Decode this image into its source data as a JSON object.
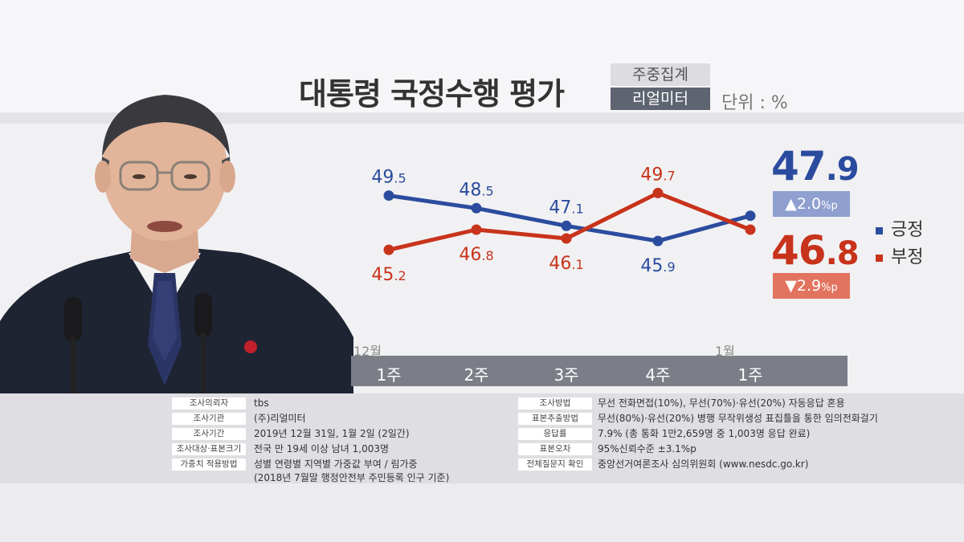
{
  "header": {
    "title": "대통령 국정수행 평가",
    "tag_top": "주중집계",
    "tag_bottom": "리얼미터",
    "unit": "단위 : %"
  },
  "chart_data": {
    "type": "line",
    "title": "대통령 국정수행 평가",
    "categories": [
      "1주",
      "2주",
      "3주",
      "4주",
      "1주"
    ],
    "months": [
      {
        "label": "12월",
        "index": 0
      },
      {
        "label": "1월",
        "index": 4
      }
    ],
    "series": [
      {
        "name": "긍정",
        "color": "#2b4c9e",
        "values": [
          49.5,
          48.5,
          47.1,
          45.9,
          47.9
        ]
      },
      {
        "name": "부정",
        "color": "#c8331b",
        "values": [
          45.2,
          46.8,
          46.1,
          49.7,
          46.8
        ]
      }
    ],
    "data_labels": {
      "positive": [
        {
          "int": "49",
          "dec": ".5"
        },
        {
          "int": "48",
          "dec": ".5"
        },
        {
          "int": "47",
          "dec": ".1"
        },
        {
          "int": "45",
          "dec": ".9"
        }
      ],
      "negative": [
        {
          "int": "45",
          "dec": ".2"
        },
        {
          "int": "46",
          "dec": ".8"
        },
        {
          "int": "46",
          "dec": ".1"
        },
        {
          "int": "49",
          "dec": ".7"
        }
      ]
    },
    "latest": {
      "positive": {
        "int": "47",
        "dec": ".9",
        "change_value": "▲2.0",
        "change_unit": "%p"
      },
      "negative": {
        "int": "46",
        "dec": ".8",
        "change_value": "▼2.9",
        "change_unit": "%p"
      }
    },
    "legend": [
      {
        "label": "긍정",
        "color": "#2b4c9e"
      },
      {
        "label": "부정",
        "color": "#c8331b"
      }
    ],
    "ylim": [
      44,
      51
    ]
  },
  "survey_info": {
    "left": [
      {
        "key": "조사의뢰자",
        "value": "tbs"
      },
      {
        "key": "조사기관",
        "value": "(주)리얼미터"
      },
      {
        "key": "조사기간",
        "value": "2019년 12월 31일, 1월 2일 (2일간)"
      },
      {
        "key": "조사대상·표본크기",
        "value": "전국 만 19세 이상 남녀 1,003명"
      },
      {
        "key": "가중치 적용방법",
        "value": "성별 연령별 지역별 가중값 부여 / 림가중",
        "value2": "(2018년 7월말 행정안전부 주민등록 인구 기준)"
      }
    ],
    "right": [
      {
        "key": "조사방법",
        "value": "무선 전화면접(10%), 무선(70%)·유선(20%) 자동응답 혼용"
      },
      {
        "key": "표본추출방법",
        "value": "무선(80%)·유선(20%) 병행 무작위생성 표집틀을 통한 임의전화걸기"
      },
      {
        "key": "응답률",
        "value": "7.9% (총 통화 1만2,659명 중 1,003명 응답 완료)"
      },
      {
        "key": "표본오차",
        "value": "95%신뢰수준 ±3.1%p"
      },
      {
        "key": "전체질문지 확인",
        "value": "중앙선거여론조사 심의위원회 (www.nesdc.go.kr)"
      }
    ]
  }
}
